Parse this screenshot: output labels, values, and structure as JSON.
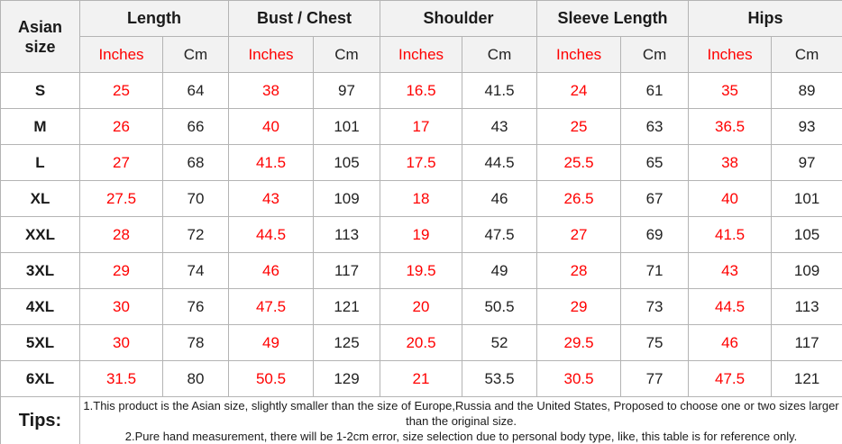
{
  "chart_data": {
    "type": "table",
    "title": "Asian size chart",
    "corner_header": "Asian size",
    "column_groups": [
      "Length",
      "Bust / Chest",
      "Shoulder",
      "Sleeve Length",
      "Hips"
    ],
    "unit_headers": [
      "Inches",
      "Cm"
    ],
    "rows": [
      {
        "size": "S",
        "values": [
          25,
          64,
          38,
          97,
          16.5,
          41.5,
          24,
          61,
          35,
          89
        ]
      },
      {
        "size": "M",
        "values": [
          26,
          66,
          40,
          101,
          17,
          43,
          25,
          63,
          36.5,
          93
        ]
      },
      {
        "size": "L",
        "values": [
          27,
          68,
          41.5,
          105,
          17.5,
          44.5,
          25.5,
          65,
          38,
          97
        ]
      },
      {
        "size": "XL",
        "values": [
          27.5,
          70,
          43,
          109,
          18,
          46,
          26.5,
          67,
          40,
          101
        ]
      },
      {
        "size": "XXL",
        "values": [
          28,
          72,
          44.5,
          113,
          19,
          47.5,
          27,
          69,
          41.5,
          105
        ]
      },
      {
        "size": "3XL",
        "values": [
          29,
          74,
          46,
          117,
          19.5,
          49,
          28,
          71,
          43,
          109
        ]
      },
      {
        "size": "4XL",
        "values": [
          30,
          76,
          47.5,
          121,
          20,
          50.5,
          29,
          73,
          44.5,
          113
        ]
      },
      {
        "size": "5XL",
        "values": [
          30,
          78,
          49,
          125,
          20.5,
          52,
          29.5,
          75,
          46,
          117
        ]
      },
      {
        "size": "6XL",
        "values": [
          31.5,
          80,
          50.5,
          129,
          21,
          53.5,
          30.5,
          77,
          47.5,
          121
        ]
      }
    ],
    "colors": {
      "inches_text": "#ff0000",
      "cm_text": "#222222",
      "header_background": "#f2f2f2",
      "border": "#b4b4b4"
    }
  },
  "tips": {
    "label": "Tips:",
    "lines": [
      "1.This product is the Asian size, slightly smaller than the size of Europe,Russia and the United States, Proposed to choose one or two sizes larger than the original size.",
      "2.Pure hand measurement, there will be 1-2cm error, size selection due to personal body type, like, this table is for reference only."
    ]
  }
}
